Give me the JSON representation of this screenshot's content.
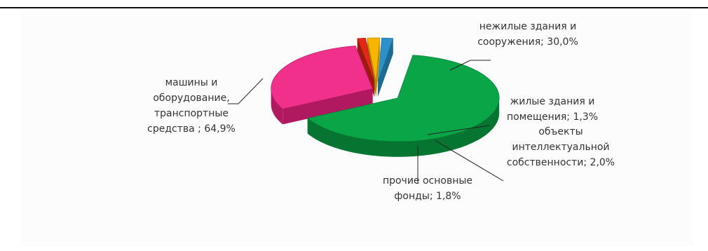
{
  "chart_data": {
    "type": "pie",
    "title": "",
    "slices": [
      {
        "label_lines": [
          "машины и",
          "оборудование,",
          "транспортные",
          "средства ; 64,9%"
        ],
        "value": 64.9,
        "color": "#09A546",
        "side_color": "#067532"
      },
      {
        "label_lines": [
          "нежилые здания и",
          "сооружения; 30,0%"
        ],
        "value": 30.0,
        "color": "#F0308A",
        "side_color": "#B0185F"
      },
      {
        "label_lines": [
          "жилые здания и",
          "помещения; 1,3%"
        ],
        "value": 1.3,
        "color": "#E02818",
        "side_color": "#9C1A0E"
      },
      {
        "label_lines": [
          "объекты",
          "интеллектуальной",
          "собственности; 2,0%"
        ],
        "value": 2.0,
        "color": "#F7B500",
        "side_color": "#B68500"
      },
      {
        "label_lines": [
          "прочие основные",
          "фонды; 1,8%"
        ],
        "value": 1.8,
        "color": "#2B91C8",
        "side_color": "#1D6A92"
      }
    ]
  }
}
